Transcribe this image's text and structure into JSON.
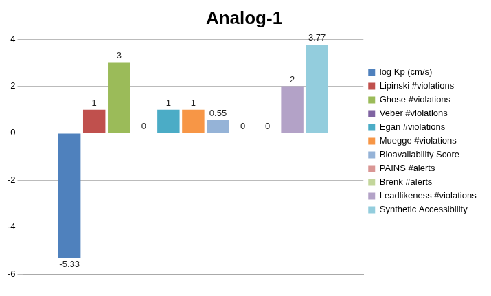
{
  "chart_data": {
    "type": "bar",
    "title": "Analog-1",
    "categories": [
      null
    ],
    "series": [
      {
        "name": "log Kp (cm/s)",
        "color": "#4f81bd",
        "values": [
          -5.33
        ]
      },
      {
        "name": "Lipinski #violations",
        "color": "#c0504d",
        "values": [
          1
        ]
      },
      {
        "name": "Ghose #violations",
        "color": "#9bbb59",
        "values": [
          3
        ]
      },
      {
        "name": "Veber #violations",
        "color": "#8064a2",
        "values": [
          0
        ]
      },
      {
        "name": "Egan #violations",
        "color": "#4bacc6",
        "values": [
          1
        ]
      },
      {
        "name": "Muegge #violations",
        "color": "#f79646",
        "values": [
          1
        ]
      },
      {
        "name": "Bioavailability Score",
        "color": "#95b3d7",
        "values": [
          0.55
        ]
      },
      {
        "name": "PAINS #alerts",
        "color": "#d99694",
        "values": [
          0
        ]
      },
      {
        "name": "Brenk #alerts",
        "color": "#c3d69b",
        "values": [
          0
        ]
      },
      {
        "name": "Leadlikeness #violations",
        "color": "#b3a2c7",
        "values": [
          2
        ]
      },
      {
        "name": "Synthetic Accessibility",
        "color": "#93cddd",
        "values": [
          3.77
        ]
      }
    ],
    "ylim": [
      -6,
      4
    ],
    "yticks": [
      -6,
      -4,
      -2,
      0,
      2,
      4
    ],
    "grid": true,
    "legend": "right",
    "data_labels": true,
    "tick_labels": "y"
  }
}
